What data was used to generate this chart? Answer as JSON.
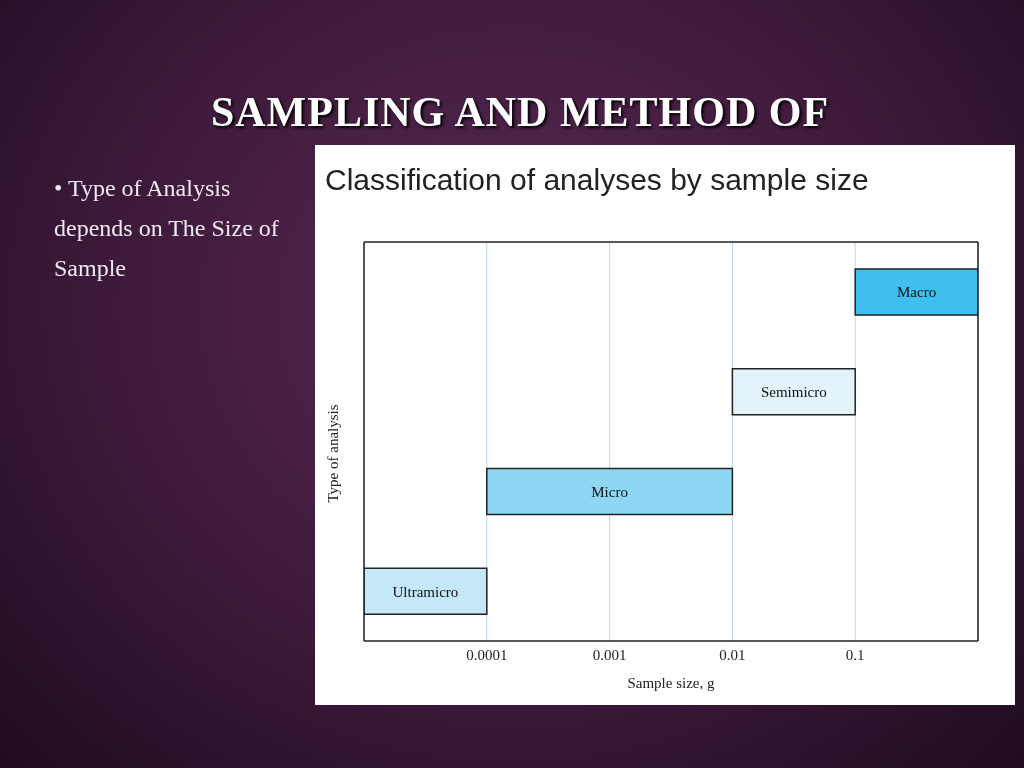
{
  "chart_data": {
    "type": "bar",
    "orientation": "horizontal",
    "title": "SAMPLING AND METHOD OF",
    "subtitle": "Classification of analyses by sample size",
    "annotations": [
      "• Type of Analysis depends on The Size of Sample"
    ],
    "xlabel": "Sample size, g",
    "ylabel": "Type of analysis",
    "categories": [
      "Macro",
      "Semimicro",
      "Micro",
      "Ultramicro"
    ],
    "base": [
      0.1,
      0.01,
      0.0001,
      1e-05
    ],
    "values": [
      0.9,
      0.09,
      0.0099,
      9e-05
    ],
    "colors": [
      "#3fbfef",
      "#e4f3fb",
      "#8fd6f5",
      "#c4e8f8"
    ],
    "xlim": [
      1e-05,
      1
    ],
    "xticks": [
      0.0001,
      0.001,
      0.01,
      0.1
    ],
    "log": "x",
    "grid": "x",
    "tick_labels": "x"
  }
}
